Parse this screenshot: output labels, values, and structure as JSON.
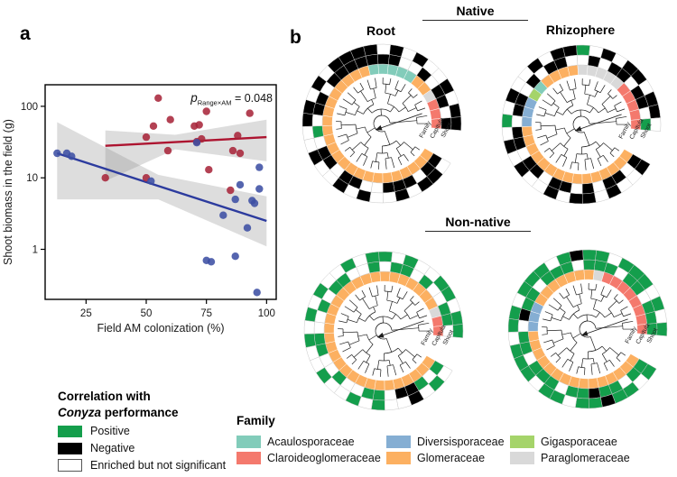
{
  "panel_a": {
    "label": "a",
    "annotation": {
      "p": "p",
      "sub": "Range×AM",
      "value": "= 0.048"
    }
  },
  "chart_data": {
    "type": "scatter",
    "title": "",
    "xlabel": "Field AM colonization (%)",
    "ylabel": "Shoot biomass in the field (g)",
    "x_ticks": [
      25,
      50,
      75,
      100
    ],
    "y_ticks": [
      1,
      10,
      100
    ],
    "y_scale": "log",
    "xlim": [
      8,
      104
    ],
    "ylim": [
      0.2,
      200
    ],
    "annotation": "p_Range×AM = 0.048",
    "legend_position": "none",
    "grid": false,
    "series": [
      {
        "name": "red",
        "point_color": "#a8253a",
        "line_color": "#ad1430",
        "points": [
          [
            55,
            130
          ],
          [
            60,
            65
          ],
          [
            53,
            53
          ],
          [
            50,
            37
          ],
          [
            70,
            53
          ],
          [
            72,
            55
          ],
          [
            75,
            85
          ],
          [
            93,
            80
          ],
          [
            71,
            32
          ],
          [
            73,
            35
          ],
          [
            88,
            39
          ],
          [
            59,
            24
          ],
          [
            86,
            24
          ],
          [
            89,
            22
          ],
          [
            76,
            13
          ],
          [
            33,
            10
          ],
          [
            50,
            10
          ],
          [
            85,
            6.7
          ]
        ],
        "regression": [
          [
            33,
            28
          ],
          [
            100,
            37
          ]
        ],
        "band": {
          "top": [
            [
              33,
              46
            ],
            [
              62,
              40
            ],
            [
              100,
              65
            ]
          ],
          "bottom": [
            [
              33,
              9
            ],
            [
              62,
              25
            ],
            [
              100,
              17
            ]
          ]
        }
      },
      {
        "name": "blue",
        "point_color": "#3c4ea3",
        "line_color": "#2c3b9e",
        "points": [
          [
            13,
            22
          ],
          [
            17,
            22
          ],
          [
            19,
            20
          ],
          [
            71,
            31
          ],
          [
            97,
            14
          ],
          [
            52,
            9
          ],
          [
            89,
            8
          ],
          [
            82,
            3
          ],
          [
            87,
            5
          ],
          [
            94,
            4.8
          ],
          [
            95,
            4.4
          ],
          [
            97,
            7
          ],
          [
            92,
            2
          ],
          [
            75,
            0.7
          ],
          [
            77,
            0.67
          ],
          [
            87,
            0.8
          ],
          [
            96,
            0.25
          ]
        ],
        "regression": [
          [
            13,
            22
          ],
          [
            100,
            2.5
          ]
        ],
        "band": {
          "top": [
            [
              13,
              60
            ],
            [
              55,
              11
            ],
            [
              100,
              5.5
            ]
          ],
          "bottom": [
            [
              13,
              5
            ],
            [
              55,
              5
            ],
            [
              100,
              1.1
            ]
          ]
        }
      }
    ]
  },
  "panel_b": {
    "label": "b",
    "group_titles": [
      {
        "text": "Native"
      },
      {
        "text": "Non-native"
      }
    ],
    "col_titles": [
      "Root",
      "Rhizophere"
    ],
    "ring_labels": [
      "Family",
      "Capitula",
      "Shoot"
    ],
    "colors": {
      "positive": "#149e4c",
      "negative": "#000000",
      "not_significant": "#ffffff",
      "family": {
        "g": "#fcb061",
        "a": "#82ccba",
        "c": "#f4796d",
        "d": "#85aed3",
        "i": "#a5d46a",
        "p": "#d9d9d9"
      }
    },
    "trees": [
      {
        "name": "native-root",
        "family": "gggggggggggggggggggggggaaaaaggpccc",
        "capitula": "2202220022022010220222222200202202",
        "shoot": "0220200202002002202022220202002022"
      },
      {
        "name": "native-rhizosphere",
        "family": "gggggggggggggggdddiaggggpppppccccc",
        "capitula": "2022020220220220220202200202202201",
        "shoot": "2002022020020201020020221020220220"
      },
      {
        "name": "nonnative-root",
        "family": "gggggggggggggggggggggggggggggggpcc",
        "capitula": "1012201100100110010110010110100110",
        "shoot": "0102001010010010101001011010011011"
      },
      {
        "name": "nonnative-rhizosphere",
        "family": "gggggggggggggggdddgggggggpcccccccc",
        "capitula": "1101121101110110211011101110110111",
        "shoot": "1011211011011101101110121101110101"
      }
    ]
  },
  "legend_correlation": {
    "title_line1": "Correlation with",
    "title_italic": "Conyza",
    "title_rest": " performance",
    "items": [
      {
        "label": "Positive",
        "color": "#149e4c"
      },
      {
        "label": "Negative",
        "color": "#000000"
      },
      {
        "label": "Enriched but not significant",
        "color": "#ffffff"
      }
    ]
  },
  "legend_family": {
    "title": "Family",
    "items": [
      {
        "label": "Acaulosporaceae",
        "color": "#82ccba"
      },
      {
        "label": "Claroideoglomeraceae",
        "color": "#f4796d"
      },
      {
        "label": "Diversisporaceae",
        "color": "#85aed3"
      },
      {
        "label": "Glomeraceae",
        "color": "#fcb061"
      },
      {
        "label": "Gigasporaceae",
        "color": "#a5d46a"
      },
      {
        "label": "Paraglomeraceae",
        "color": "#d9d9d9"
      }
    ]
  }
}
